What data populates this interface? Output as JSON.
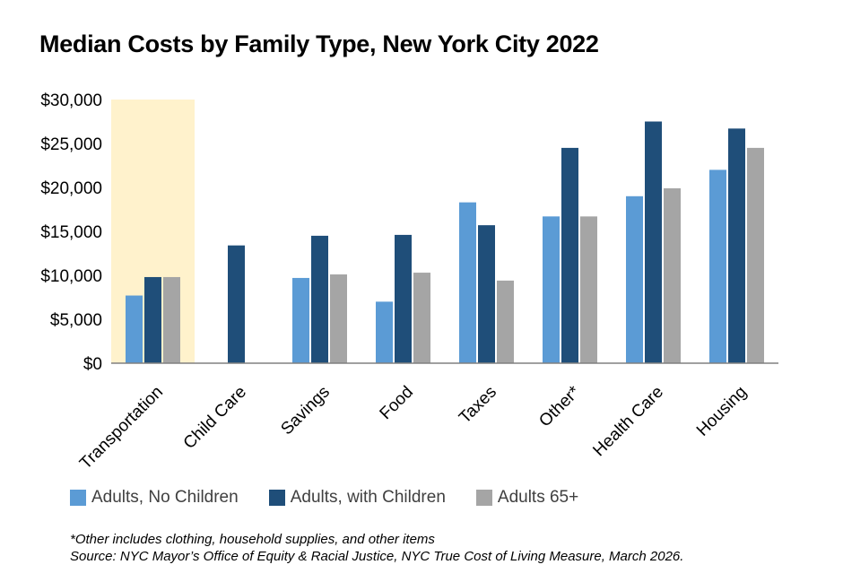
{
  "title": "Median Costs by Family Type, New York City 2022",
  "chart_data": {
    "type": "bar",
    "title": "Median Costs by Family Type, New York City 2022",
    "categories": [
      "Transportation",
      "Child Care",
      "Savings",
      "Food",
      "Taxes",
      "Other*",
      "Health Care",
      "Housing"
    ],
    "series": [
      {
        "name": "Adults, No Children",
        "color": "#5b9bd5",
        "values": [
          7700,
          0,
          9700,
          7000,
          18300,
          16700,
          19000,
          22000
        ]
      },
      {
        "name": "Adults, with Children",
        "color": "#1f4e79",
        "values": [
          9800,
          13400,
          14500,
          14600,
          15700,
          24500,
          27500,
          26700
        ]
      },
      {
        "name": "Adults 65+",
        "color": "#a5a5a5",
        "values": [
          9800,
          0,
          10100,
          10300,
          9400,
          16700,
          19900,
          24500
        ]
      }
    ],
    "highlight": {
      "category": "Transportation",
      "color": "#fff2cc"
    },
    "y_ticks": [
      "$0",
      "$5,000",
      "$10,000",
      "$15,000",
      "$20,000",
      "$25,000",
      "$30,000"
    ],
    "ylim": [
      0,
      30000
    ],
    "grid": false,
    "legend_position": "bottom-left"
  },
  "footnote": {
    "line1": "*Other includes clothing, household supplies, and other items",
    "line2": "Source: NYC Mayor’s Office of Equity & Racial Justice, NYC True Cost of Living Measure, March 2026."
  }
}
